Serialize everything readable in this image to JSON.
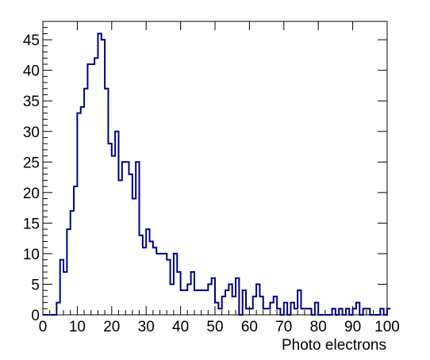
{
  "chart_data": {
    "type": "histogram",
    "title": "",
    "xlabel": "Photo electrons",
    "ylabel": "",
    "xlim": [
      0,
      100
    ],
    "ylim": [
      0,
      48
    ],
    "bin_width": 1,
    "grid": false,
    "x_ticks": [
      0,
      10,
      20,
      30,
      40,
      50,
      60,
      70,
      80,
      90,
      100
    ],
    "y_ticks": [
      0,
      5,
      10,
      15,
      20,
      25,
      30,
      35,
      40,
      45
    ],
    "line_color": "#000080",
    "values": [
      0,
      0,
      0,
      0,
      2,
      9,
      7,
      14,
      17,
      21,
      33,
      34,
      37,
      41,
      41,
      42,
      46,
      45,
      37,
      28,
      26,
      30,
      22,
      25,
      25,
      23,
      19,
      25,
      13,
      11,
      14,
      12,
      11,
      10,
      10,
      10,
      9,
      5,
      10,
      7,
      4,
      4,
      5,
      7,
      4,
      4,
      4,
      4,
      5,
      6,
      2,
      1,
      3,
      4,
      5,
      3,
      6,
      0,
      4,
      1,
      1,
      3,
      5,
      3,
      1,
      1,
      2,
      3,
      1,
      0,
      2,
      0,
      2,
      1,
      4,
      1,
      1,
      1,
      0,
      2,
      0,
      0,
      0,
      0,
      1,
      0,
      1,
      0,
      1,
      0,
      1,
      2,
      0,
      1,
      1,
      0,
      0,
      0,
      1,
      0,
      1
    ]
  }
}
